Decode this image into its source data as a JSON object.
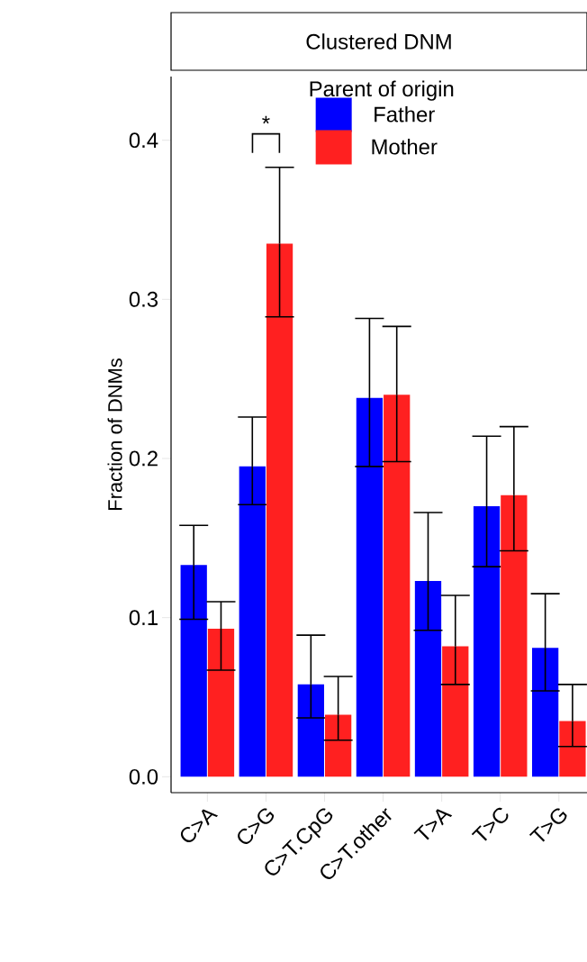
{
  "chart_data": {
    "type": "bar",
    "title": "Clustered DNM",
    "ylabel": "Fraction of DNMs",
    "legend_title": "Parent of origin",
    "legend": "top",
    "categories": [
      "C>A",
      "C>G",
      "C>T.CpG",
      "C>T.other",
      "T>A",
      "T>C",
      "T>G"
    ],
    "series": [
      {
        "name": "Father",
        "color": "#0000ff",
        "values": [
          0.133,
          0.195,
          0.058,
          0.238,
          0.123,
          0.17,
          0.081
        ],
        "errors": [
          [
            0.099,
            0.158
          ],
          [
            0.171,
            0.226
          ],
          [
            0.037,
            0.089
          ],
          [
            0.195,
            0.288
          ],
          [
            0.092,
            0.166
          ],
          [
            0.132,
            0.214
          ],
          [
            0.054,
            0.115
          ]
        ]
      },
      {
        "name": "Mother",
        "color": "#ff2020",
        "values": [
          0.093,
          0.335,
          0.039,
          0.24,
          0.082,
          0.177,
          0.035
        ],
        "errors": [
          [
            0.067,
            0.11
          ],
          [
            0.289,
            0.383
          ],
          [
            0.023,
            0.063
          ],
          [
            0.198,
            0.283
          ],
          [
            0.058,
            0.114
          ],
          [
            0.142,
            0.22
          ],
          [
            0.019,
            0.058
          ]
        ]
      }
    ],
    "ylim": [
      -0.01,
      0.44
    ],
    "yticks": [
      {
        "value": 0,
        "label": "0.0"
      },
      0.1,
      0.2,
      0.3,
      0.4
    ],
    "annotations": [
      "*"
    ]
  }
}
